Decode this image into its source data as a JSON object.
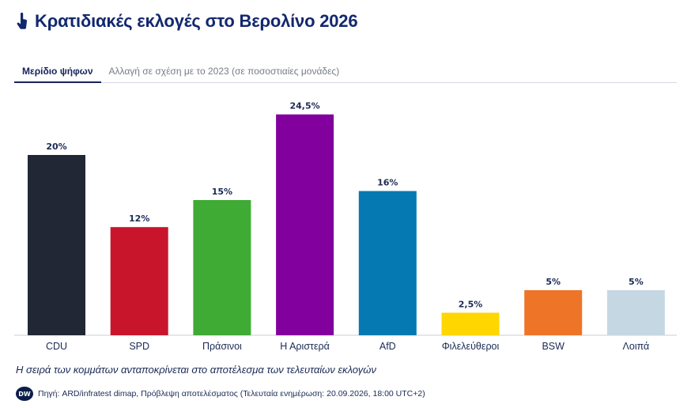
{
  "header": {
    "title": "Κρατιδιακές εκλογές στο Βερολίνο 2026",
    "icon": "pointing-hand-icon"
  },
  "tabs": [
    {
      "label": "Μερίδιο ψήφων",
      "active": true
    },
    {
      "label": "Αλλαγή σε σχέση με το 2023 (σε ποσοστιαίες μονάδες)",
      "active": false
    }
  ],
  "chart_data": {
    "type": "bar",
    "categories": [
      "CDU",
      "SPD",
      "Πράσινοι",
      "Η Αριστερά",
      "AfD",
      "Φιλελεύθεροι",
      "BSW",
      "Λοιπά"
    ],
    "values": [
      20,
      12,
      15,
      24.5,
      16,
      2.5,
      5,
      5
    ],
    "value_labels": [
      "20%",
      "12%",
      "15%",
      "24,5%",
      "16%",
      "2,5%",
      "5%",
      "5%"
    ],
    "colors": [
      "#212735",
      "#c8152c",
      "#3fab35",
      "#82019e",
      "#0579b1",
      "#ffd600",
      "#ee7427",
      "#c6d7e4"
    ],
    "ylim": [
      0,
      25
    ],
    "grid": false,
    "legend": "none"
  },
  "footer": {
    "note": "Η σειρά των κομμάτων ανταποκρίνεται στο αποτέλεσμα των τελευταίων εκλογών",
    "logo_text": "DW",
    "source": "Πηγή: ARD/infratest dimap, Πρόβλεψη αποτελέσματος (Τελευταία ενημέρωση: 20.09.2026, 18:00 UTC+2)"
  }
}
